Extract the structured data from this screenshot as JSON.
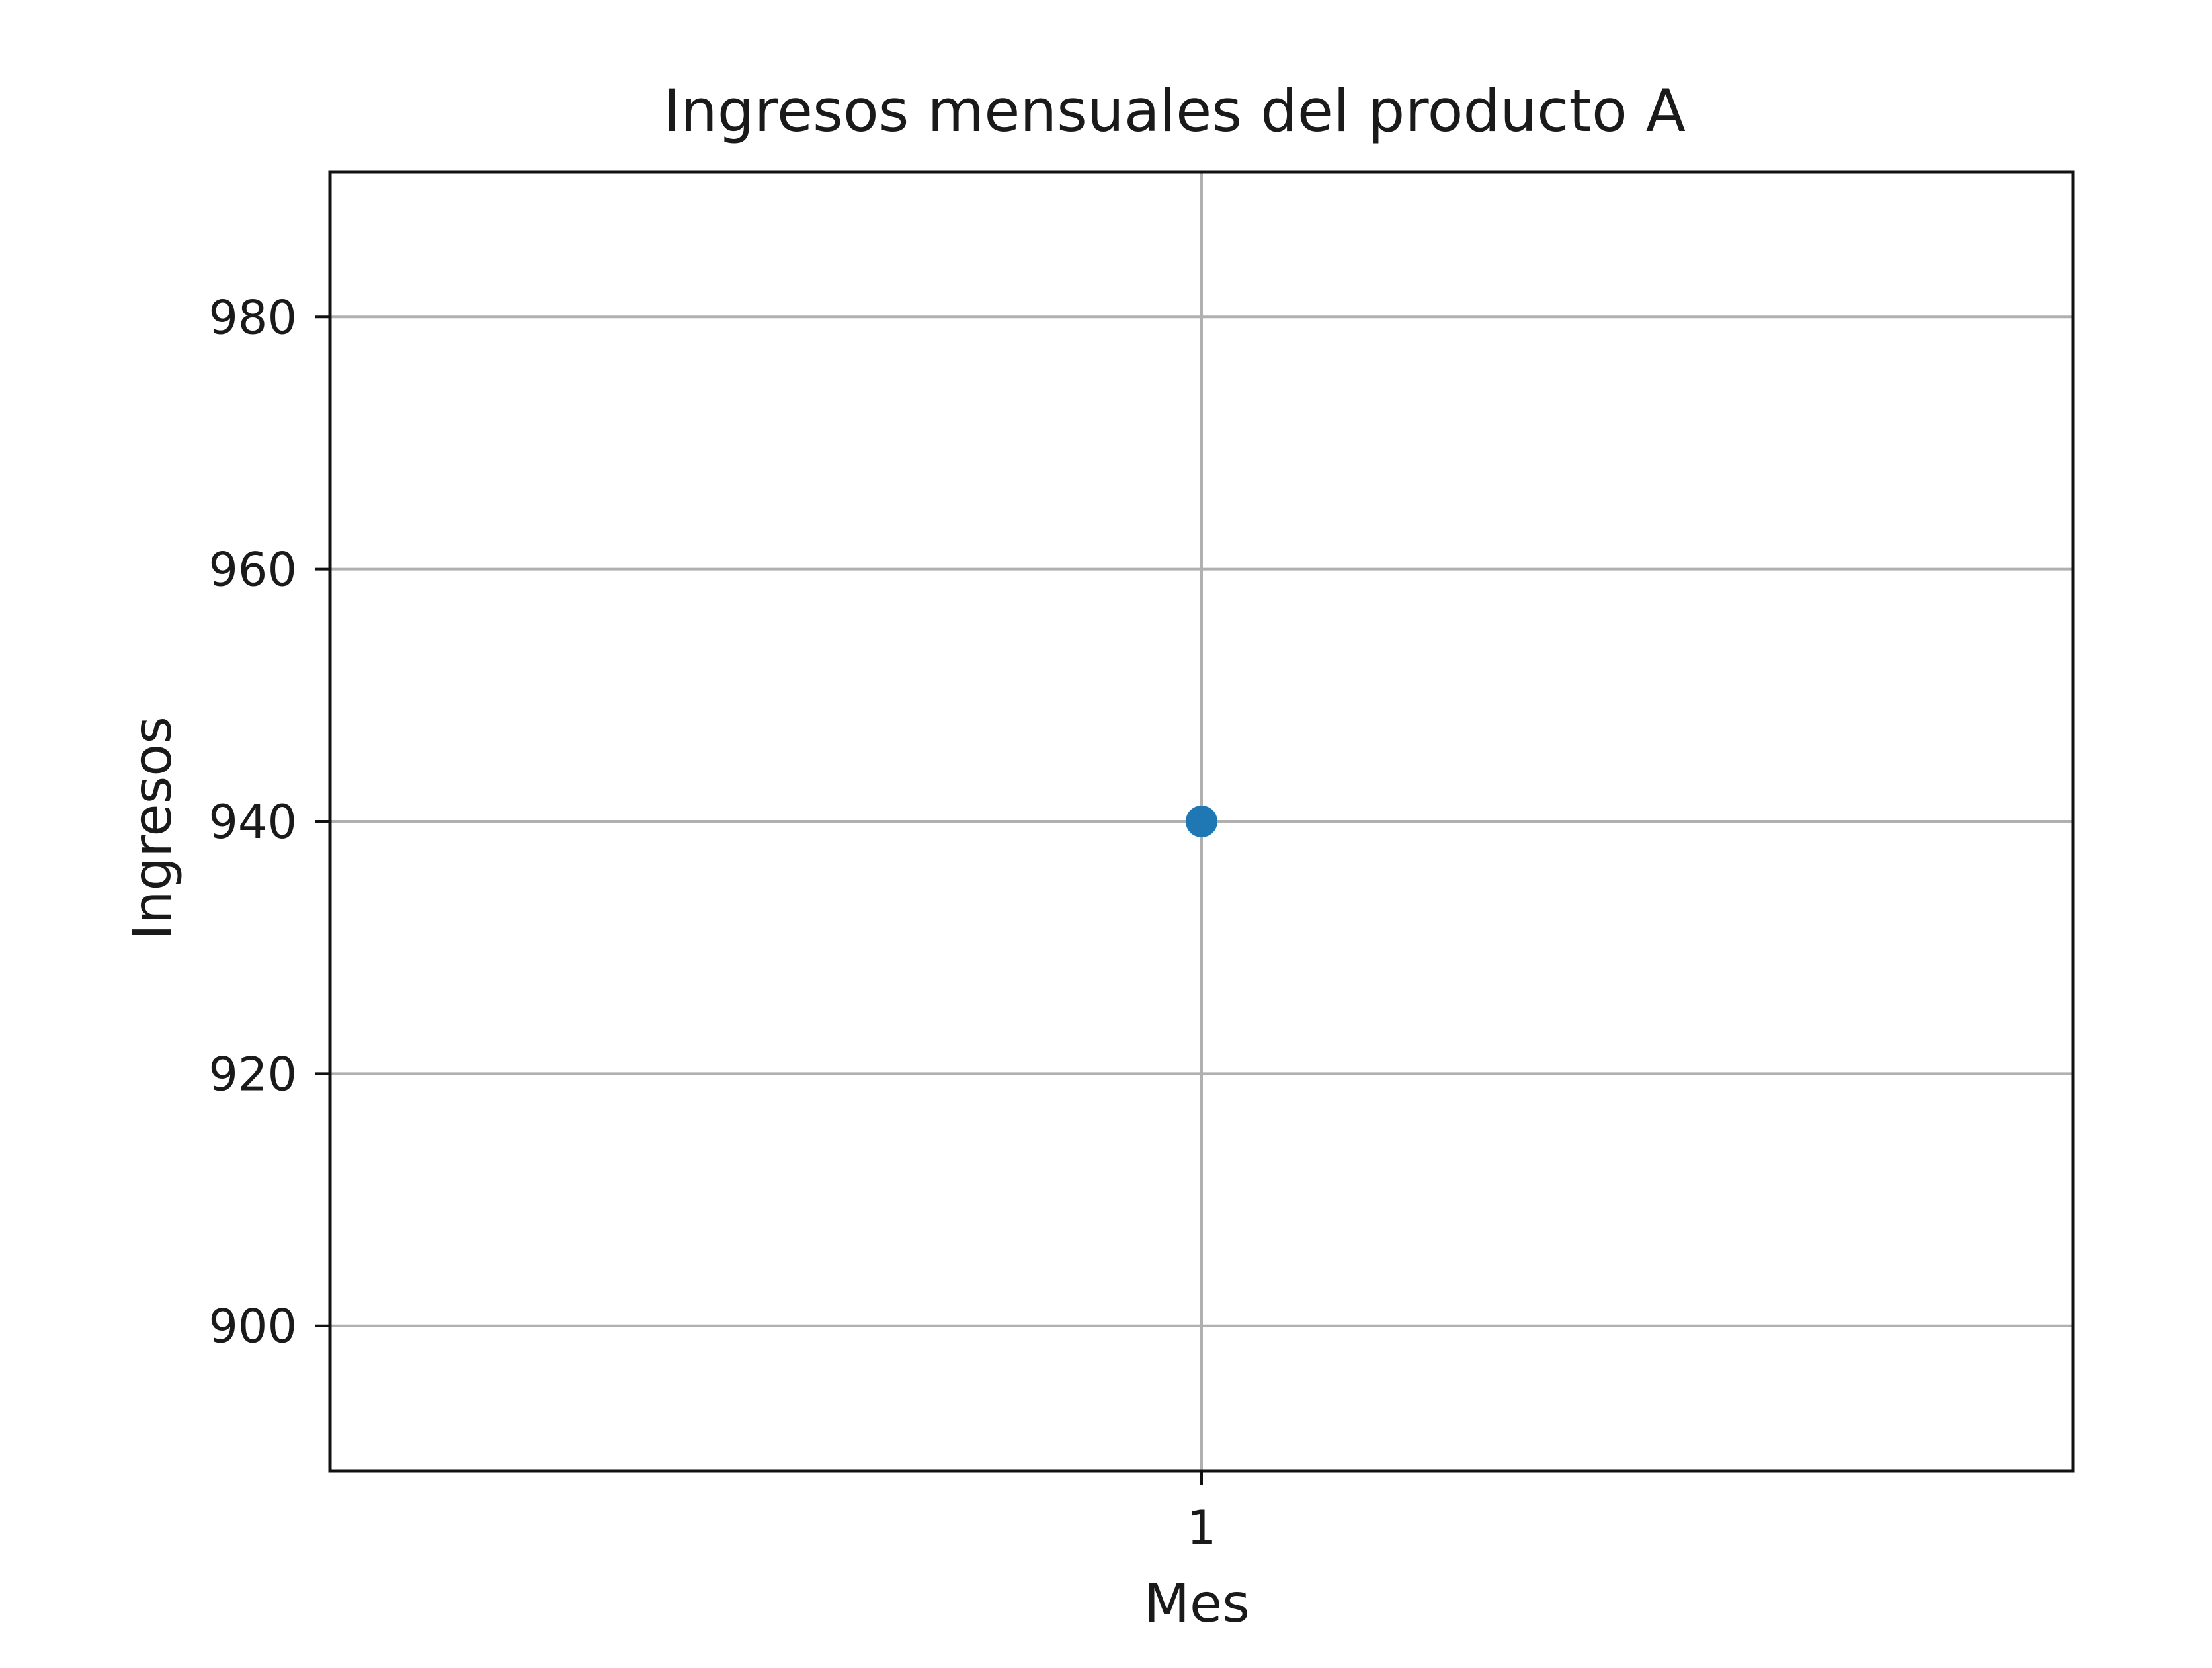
{
  "chart_data": {
    "type": "scatter",
    "title": "Ingresos mensuales del producto A",
    "xlabel": "Mes",
    "ylabel": "Ingresos",
    "x": [
      1
    ],
    "x_ticks": [
      1
    ],
    "y_ticks": [
      900,
      920,
      940,
      960,
      980
    ],
    "ylim": [
      888.5,
      991.5
    ],
    "series": [
      {
        "x": [
          1
        ],
        "y": [
          940
        ],
        "color": "#1f77b4"
      }
    ],
    "grid": true,
    "legend": "none"
  }
}
